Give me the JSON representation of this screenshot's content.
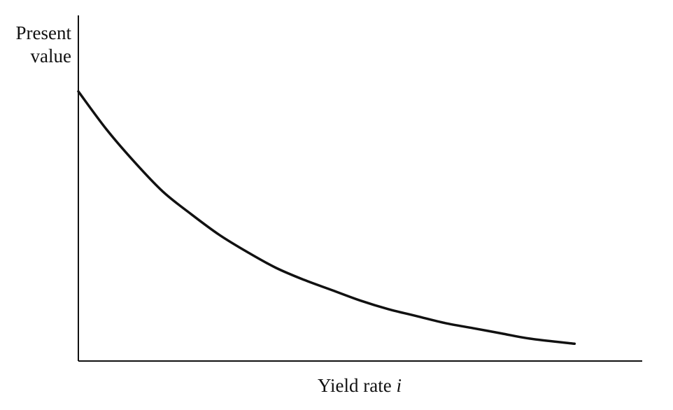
{
  "chart_data": {
    "type": "line",
    "title": "",
    "xlabel_main": "Yield rate ",
    "xlabel_var": "i",
    "ylabel_line1": "Present",
    "ylabel_line2": "value",
    "grid": false,
    "legend": "none",
    "x_ticks": [],
    "y_ticks": [],
    "xlim": [
      0,
      1
    ],
    "ylim": [
      0,
      1
    ],
    "series": [
      {
        "x": [
          0,
          0.05,
          0.1,
          0.15,
          0.2,
          0.25,
          0.3,
          0.35,
          0.4,
          0.45,
          0.5,
          0.55,
          0.6,
          0.65,
          0.7,
          0.75,
          0.8,
          0.88
        ],
        "values": [
          0.78,
          0.67,
          0.575,
          0.49,
          0.425,
          0.365,
          0.315,
          0.27,
          0.235,
          0.205,
          0.175,
          0.15,
          0.13,
          0.11,
          0.095,
          0.08,
          0.065,
          0.05
        ]
      }
    ],
    "colors": {
      "curve": "#111111",
      "axis": "#111111"
    }
  }
}
